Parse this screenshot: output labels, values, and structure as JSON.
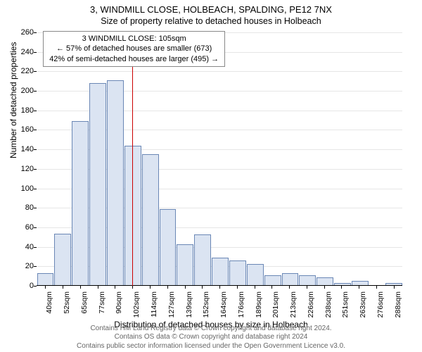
{
  "meta": {
    "title_line1": "3, WINDMILL CLOSE, HOLBEACH, SPALDING, PE12 7NX",
    "title_line2": "Size of property relative to detached houses in Holbeach",
    "xlabel": "Distribution of detached houses by size in Holbeach",
    "ylabel": "Number of detached properties",
    "footer_line1": "Contains HM Land Registry data © Crown copyright and database right 2024.",
    "footer_line2": "Contains OS data © Crown copyright and database right 2024",
    "footer_line3": "Contains public sector information licensed under the Open Government Licence v3.0."
  },
  "annotation": {
    "line1": "3 WINDMILL CLOSE: 105sqm",
    "line2": "← 57% of detached houses are smaller (673)",
    "line3": "42% of semi-detached houses are larger (495) →",
    "marker_x_label": "105sqm"
  },
  "chart": {
    "type": "histogram",
    "ylim": [
      0,
      260
    ],
    "ytick_step": 20,
    "bar_fill": "#dbe4f2",
    "bar_border": "#6a87b5",
    "grid_color": "#e6e6e6",
    "background_color": "#ffffff",
    "marker_color": "#cc0000",
    "title_fontsize": 13,
    "label_fontsize": 12,
    "tick_fontsize": 11,
    "x_labels": [
      "40sqm",
      "52sqm",
      "65sqm",
      "77sqm",
      "90sqm",
      "102sqm",
      "114sqm",
      "127sqm",
      "139sqm",
      "152sqm",
      "164sqm",
      "176sqm",
      "189sqm",
      "201sqm",
      "213sqm",
      "226sqm",
      "238sqm",
      "251sqm",
      "263sqm",
      "276sqm",
      "288sqm"
    ],
    "values": [
      12,
      53,
      168,
      207,
      210,
      143,
      134,
      78,
      42,
      52,
      28,
      25,
      22,
      10,
      12,
      10,
      8,
      2,
      4,
      0,
      2
    ],
    "marker_bin_index": 5
  }
}
